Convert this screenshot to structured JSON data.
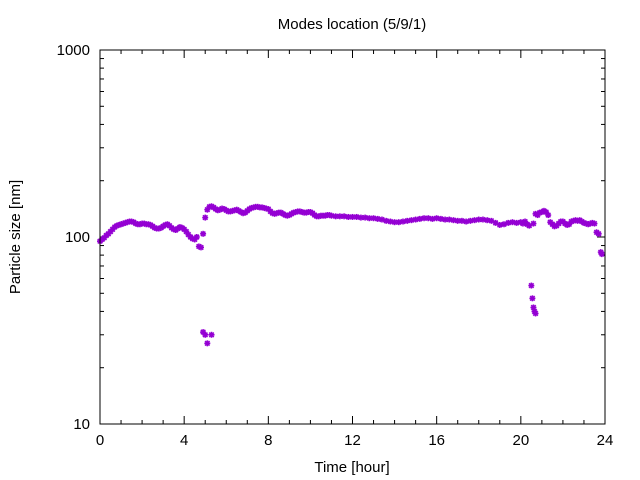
{
  "chart_data": {
    "type": "scatter",
    "title": "Modes location (5/9/1)",
    "xlabel": "Time [hour]",
    "ylabel": "Particle size [nm]",
    "x_scale": "linear",
    "y_scale": "log",
    "xlim": [
      0,
      24
    ],
    "ylim": [
      10,
      1000
    ],
    "x_ticks": [
      0,
      4,
      8,
      12,
      16,
      20,
      24
    ],
    "y_ticks": [
      10,
      100,
      1000
    ],
    "x_tick_labels": [
      "0",
      "4",
      "8",
      "12",
      "16",
      "20",
      "24"
    ],
    "y_tick_labels": [
      "10",
      "100",
      "1000"
    ],
    "grid": false,
    "marker_color": "#9400d3",
    "series": [
      {
        "points": [
          [
            0.0,
            95
          ],
          [
            0.1,
            97
          ],
          [
            0.2,
            99
          ],
          [
            0.3,
            102
          ],
          [
            0.4,
            104
          ],
          [
            0.5,
            107
          ],
          [
            0.6,
            110
          ],
          [
            0.7,
            113
          ],
          [
            0.8,
            115
          ],
          [
            0.9,
            116
          ],
          [
            1.0,
            117
          ],
          [
            1.1,
            118
          ],
          [
            1.2,
            119
          ],
          [
            1.3,
            120
          ],
          [
            1.4,
            121
          ],
          [
            1.5,
            121
          ],
          [
            1.6,
            120
          ],
          [
            1.7,
            118
          ],
          [
            1.8,
            117
          ],
          [
            1.9,
            117
          ],
          [
            2.0,
            118
          ],
          [
            2.1,
            118
          ],
          [
            2.2,
            117
          ],
          [
            2.3,
            117
          ],
          [
            2.4,
            116
          ],
          [
            2.5,
            114
          ],
          [
            2.6,
            112
          ],
          [
            2.7,
            111
          ],
          [
            2.8,
            111
          ],
          [
            2.9,
            112
          ],
          [
            3.0,
            114
          ],
          [
            3.1,
            116
          ],
          [
            3.2,
            117
          ],
          [
            3.3,
            115
          ],
          [
            3.4,
            112
          ],
          [
            3.5,
            110
          ],
          [
            3.6,
            109
          ],
          [
            3.7,
            111
          ],
          [
            3.8,
            113
          ],
          [
            3.9,
            112
          ],
          [
            4.0,
            110
          ],
          [
            4.1,
            107
          ],
          [
            4.2,
            103
          ],
          [
            4.3,
            100
          ],
          [
            4.4,
            98
          ],
          [
            4.5,
            97
          ],
          [
            4.6,
            100
          ],
          [
            4.7,
            89
          ],
          [
            4.8,
            88
          ],
          [
            4.9,
            104
          ],
          [
            5.0,
            127
          ],
          [
            5.1,
            140
          ],
          [
            5.2,
            145
          ],
          [
            5.3,
            146
          ],
          [
            5.4,
            144
          ],
          [
            5.5,
            141
          ],
          [
            5.6,
            139
          ],
          [
            5.7,
            140
          ],
          [
            5.8,
            142
          ],
          [
            5.9,
            141
          ],
          [
            6.0,
            139
          ],
          [
            6.1,
            137
          ],
          [
            6.2,
            137
          ],
          [
            6.3,
            138
          ],
          [
            6.4,
            139
          ],
          [
            6.5,
            140
          ],
          [
            6.6,
            138
          ],
          [
            6.7,
            136
          ],
          [
            6.8,
            134
          ],
          [
            6.9,
            135
          ],
          [
            7.0,
            138
          ],
          [
            7.1,
            141
          ],
          [
            7.2,
            143
          ],
          [
            7.3,
            144
          ],
          [
            7.4,
            145
          ],
          [
            7.5,
            145
          ],
          [
            7.6,
            144
          ],
          [
            7.7,
            144
          ],
          [
            7.8,
            143
          ],
          [
            7.9,
            142
          ],
          [
            8.0,
            141
          ],
          [
            8.1,
            137
          ],
          [
            8.2,
            134
          ],
          [
            8.3,
            133
          ],
          [
            8.4,
            134
          ],
          [
            8.5,
            135
          ],
          [
            8.6,
            135
          ],
          [
            8.7,
            133
          ],
          [
            8.8,
            131
          ],
          [
            8.9,
            130
          ],
          [
            9.0,
            131
          ],
          [
            9.1,
            133
          ],
          [
            9.2,
            135
          ],
          [
            9.3,
            136
          ],
          [
            9.4,
            137
          ],
          [
            9.5,
            137
          ],
          [
            9.6,
            136
          ],
          [
            9.7,
            135
          ],
          [
            9.8,
            135
          ],
          [
            9.9,
            136
          ],
          [
            10.0,
            136
          ],
          [
            10.1,
            134
          ],
          [
            10.2,
            131
          ],
          [
            10.3,
            129
          ],
          [
            10.4,
            129
          ],
          [
            10.5,
            130
          ],
          [
            10.6,
            130
          ],
          [
            10.7,
            130
          ],
          [
            10.8,
            131
          ],
          [
            10.9,
            131
          ],
          [
            11.0,
            130
          ],
          [
            11.2,
            129
          ],
          [
            11.4,
            129
          ],
          [
            11.6,
            129
          ],
          [
            11.8,
            128
          ],
          [
            12.0,
            128
          ],
          [
            12.2,
            128
          ],
          [
            12.4,
            127
          ],
          [
            12.6,
            127
          ],
          [
            12.8,
            126
          ],
          [
            13.0,
            126
          ],
          [
            13.2,
            125
          ],
          [
            13.4,
            124
          ],
          [
            13.6,
            122
          ],
          [
            13.8,
            121
          ],
          [
            14.0,
            120
          ],
          [
            14.2,
            120
          ],
          [
            14.4,
            121
          ],
          [
            14.6,
            122
          ],
          [
            14.8,
            123
          ],
          [
            15.0,
            124
          ],
          [
            15.2,
            125
          ],
          [
            15.4,
            126
          ],
          [
            15.6,
            126
          ],
          [
            15.8,
            125
          ],
          [
            16.0,
            126
          ],
          [
            16.2,
            125
          ],
          [
            16.4,
            124
          ],
          [
            16.6,
            124
          ],
          [
            16.8,
            123
          ],
          [
            17.0,
            122
          ],
          [
            17.2,
            122
          ],
          [
            17.4,
            121
          ],
          [
            17.6,
            122
          ],
          [
            17.8,
            123
          ],
          [
            18.0,
            124
          ],
          [
            18.2,
            124
          ],
          [
            18.4,
            123
          ],
          [
            18.6,
            122
          ],
          [
            18.8,
            119
          ],
          [
            19.0,
            116
          ],
          [
            19.2,
            117
          ],
          [
            19.4,
            119
          ],
          [
            19.6,
            120
          ],
          [
            19.8,
            119
          ],
          [
            20.0,
            120
          ],
          [
            20.1,
            118
          ],
          [
            20.2,
            121
          ],
          [
            20.3,
            117
          ],
          [
            20.4,
            115
          ],
          [
            20.5,
            55
          ],
          [
            20.55,
            47
          ],
          [
            20.6,
            42
          ],
          [
            20.65,
            40
          ],
          [
            20.7,
            39
          ],
          [
            20.6,
            118
          ],
          [
            20.7,
            133
          ],
          [
            20.8,
            131
          ],
          [
            20.9,
            135
          ],
          [
            21.0,
            136
          ],
          [
            21.1,
            138
          ],
          [
            21.2,
            136
          ],
          [
            21.3,
            131
          ],
          [
            21.4,
            120
          ],
          [
            21.5,
            117
          ],
          [
            21.6,
            114
          ],
          [
            21.7,
            115
          ],
          [
            21.8,
            118
          ],
          [
            21.9,
            121
          ],
          [
            22.0,
            121
          ],
          [
            22.1,
            118
          ],
          [
            22.2,
            116
          ],
          [
            22.3,
            117
          ],
          [
            22.4,
            121
          ],
          [
            22.5,
            122
          ],
          [
            22.6,
            123
          ],
          [
            22.7,
            122
          ],
          [
            22.8,
            123
          ],
          [
            22.9,
            121
          ],
          [
            23.0,
            119
          ],
          [
            23.1,
            118
          ],
          [
            23.2,
            117
          ],
          [
            23.3,
            118
          ],
          [
            23.4,
            119
          ],
          [
            23.5,
            118
          ],
          [
            23.6,
            106
          ],
          [
            23.7,
            104
          ],
          [
            23.8,
            83
          ],
          [
            23.85,
            81
          ],
          [
            4.9,
            31
          ],
          [
            5.0,
            30
          ],
          [
            5.1,
            27
          ],
          [
            5.3,
            30
          ]
        ]
      }
    ]
  }
}
